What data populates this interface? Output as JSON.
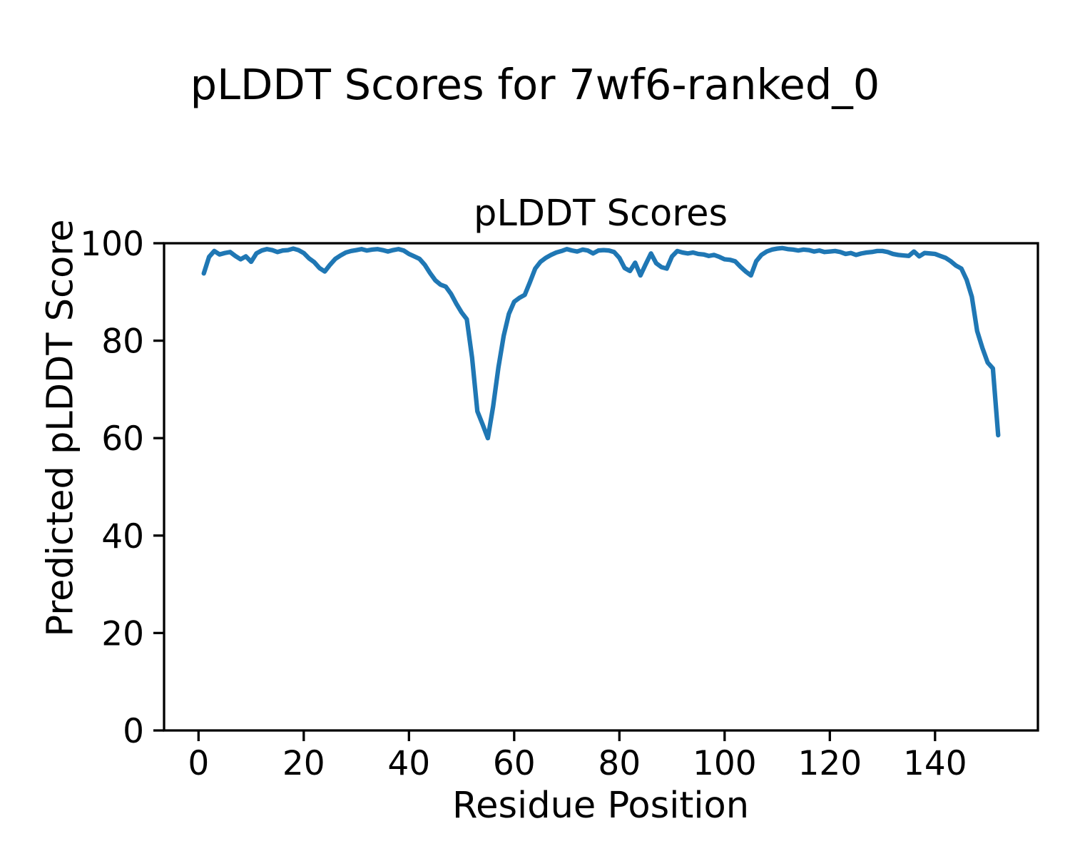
{
  "figure": {
    "suptitle": "pLDDT Scores for 7wf6-ranked_0",
    "background_color": "#ffffff"
  },
  "chart_data": {
    "type": "line",
    "title": "pLDDT Scores",
    "xlabel": "Residue Position",
    "ylabel": "Predicted pLDDT Score",
    "xlim": [
      -6.55,
      159.55
    ],
    "ylim": [
      0,
      100
    ],
    "xticks": [
      0,
      20,
      40,
      60,
      80,
      100,
      120,
      140
    ],
    "yticks": [
      0,
      20,
      40,
      60,
      80,
      100
    ],
    "grid": false,
    "legend": "none",
    "line_color": "#1f77b4",
    "axis_color": "#000000",
    "x_start": 1,
    "x_step": 1,
    "series": [
      {
        "name": "pLDDT",
        "color": "#1f77b4",
        "values": [
          93.8,
          97.2,
          98.4,
          97.7,
          98.0,
          98.2,
          97.4,
          96.7,
          97.3,
          96.2,
          97.9,
          98.5,
          98.8,
          98.6,
          98.2,
          98.5,
          98.6,
          98.9,
          98.6,
          98.0,
          96.9,
          96.1,
          94.9,
          94.2,
          95.6,
          96.8,
          97.5,
          98.1,
          98.4,
          98.6,
          98.8,
          98.5,
          98.7,
          98.8,
          98.6,
          98.3,
          98.6,
          98.8,
          98.5,
          97.8,
          97.3,
          96.8,
          95.6,
          93.9,
          92.4,
          91.5,
          91.1,
          89.6,
          87.6,
          85.8,
          84.4,
          76.5,
          65.5,
          62.8,
          60.0,
          66.5,
          74.5,
          81.0,
          85.5,
          88.0,
          88.8,
          89.4,
          92.0,
          94.8,
          96.2,
          97.0,
          97.6,
          98.1,
          98.4,
          98.8,
          98.5,
          98.3,
          98.7,
          98.5,
          97.9,
          98.5,
          98.6,
          98.5,
          98.2,
          97.0,
          94.9,
          94.3,
          96.0,
          93.4,
          95.7,
          97.9,
          95.9,
          95.1,
          94.8,
          97.3,
          98.4,
          98.1,
          97.9,
          98.1,
          97.8,
          97.7,
          97.4,
          97.6,
          97.2,
          96.7,
          96.6,
          96.3,
          95.2,
          94.2,
          93.4,
          96.3,
          97.6,
          98.3,
          98.7,
          98.9,
          99.0,
          98.8,
          98.7,
          98.5,
          98.7,
          98.6,
          98.3,
          98.5,
          98.2,
          98.3,
          98.4,
          98.2,
          97.8,
          98.0,
          97.6,
          97.9,
          98.1,
          98.2,
          98.4,
          98.4,
          98.2,
          97.8,
          97.6,
          97.5,
          97.4,
          98.3,
          97.3,
          98.0,
          97.9,
          97.8,
          97.4,
          97.0,
          96.3,
          95.4,
          94.8,
          92.5,
          89.0,
          82.0,
          78.5,
          75.5,
          74.3,
          60.6
        ]
      }
    ]
  }
}
